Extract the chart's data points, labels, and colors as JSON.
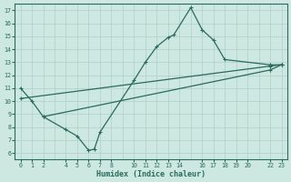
{
  "bg_color": "#cce8e0",
  "line_color": "#2a6b5a",
  "grid_color": "#b8d8d0",
  "xlabel": "Humidex (Indice chaleur)",
  "xlim": [
    -0.5,
    23.5
  ],
  "ylim": [
    5.5,
    17.5
  ],
  "xticks": [
    0,
    1,
    2,
    4,
    5,
    6,
    7,
    8,
    10,
    11,
    12,
    13,
    14,
    16,
    17,
    18,
    19,
    20,
    22,
    23
  ],
  "yticks": [
    6,
    7,
    8,
    9,
    10,
    11,
    12,
    13,
    14,
    15,
    16,
    17
  ],
  "line1_x": [
    0,
    1,
    2,
    4,
    5,
    6,
    6.5,
    7,
    10,
    11,
    12,
    13,
    13.5,
    15,
    16,
    17,
    18,
    22,
    23
  ],
  "line1_y": [
    11,
    10,
    8.8,
    7.8,
    7.3,
    6.2,
    6.3,
    7.6,
    11.6,
    13.0,
    14.2,
    14.9,
    15.1,
    17.2,
    15.5,
    14.7,
    13.2,
    12.8,
    12.8
  ],
  "line2_x": [
    0,
    22,
    23
  ],
  "line2_y": [
    10.2,
    12.7,
    12.8
  ],
  "line3_x": [
    2,
    22,
    23
  ],
  "line3_y": [
    8.8,
    12.4,
    12.8
  ],
  "marker": "+"
}
